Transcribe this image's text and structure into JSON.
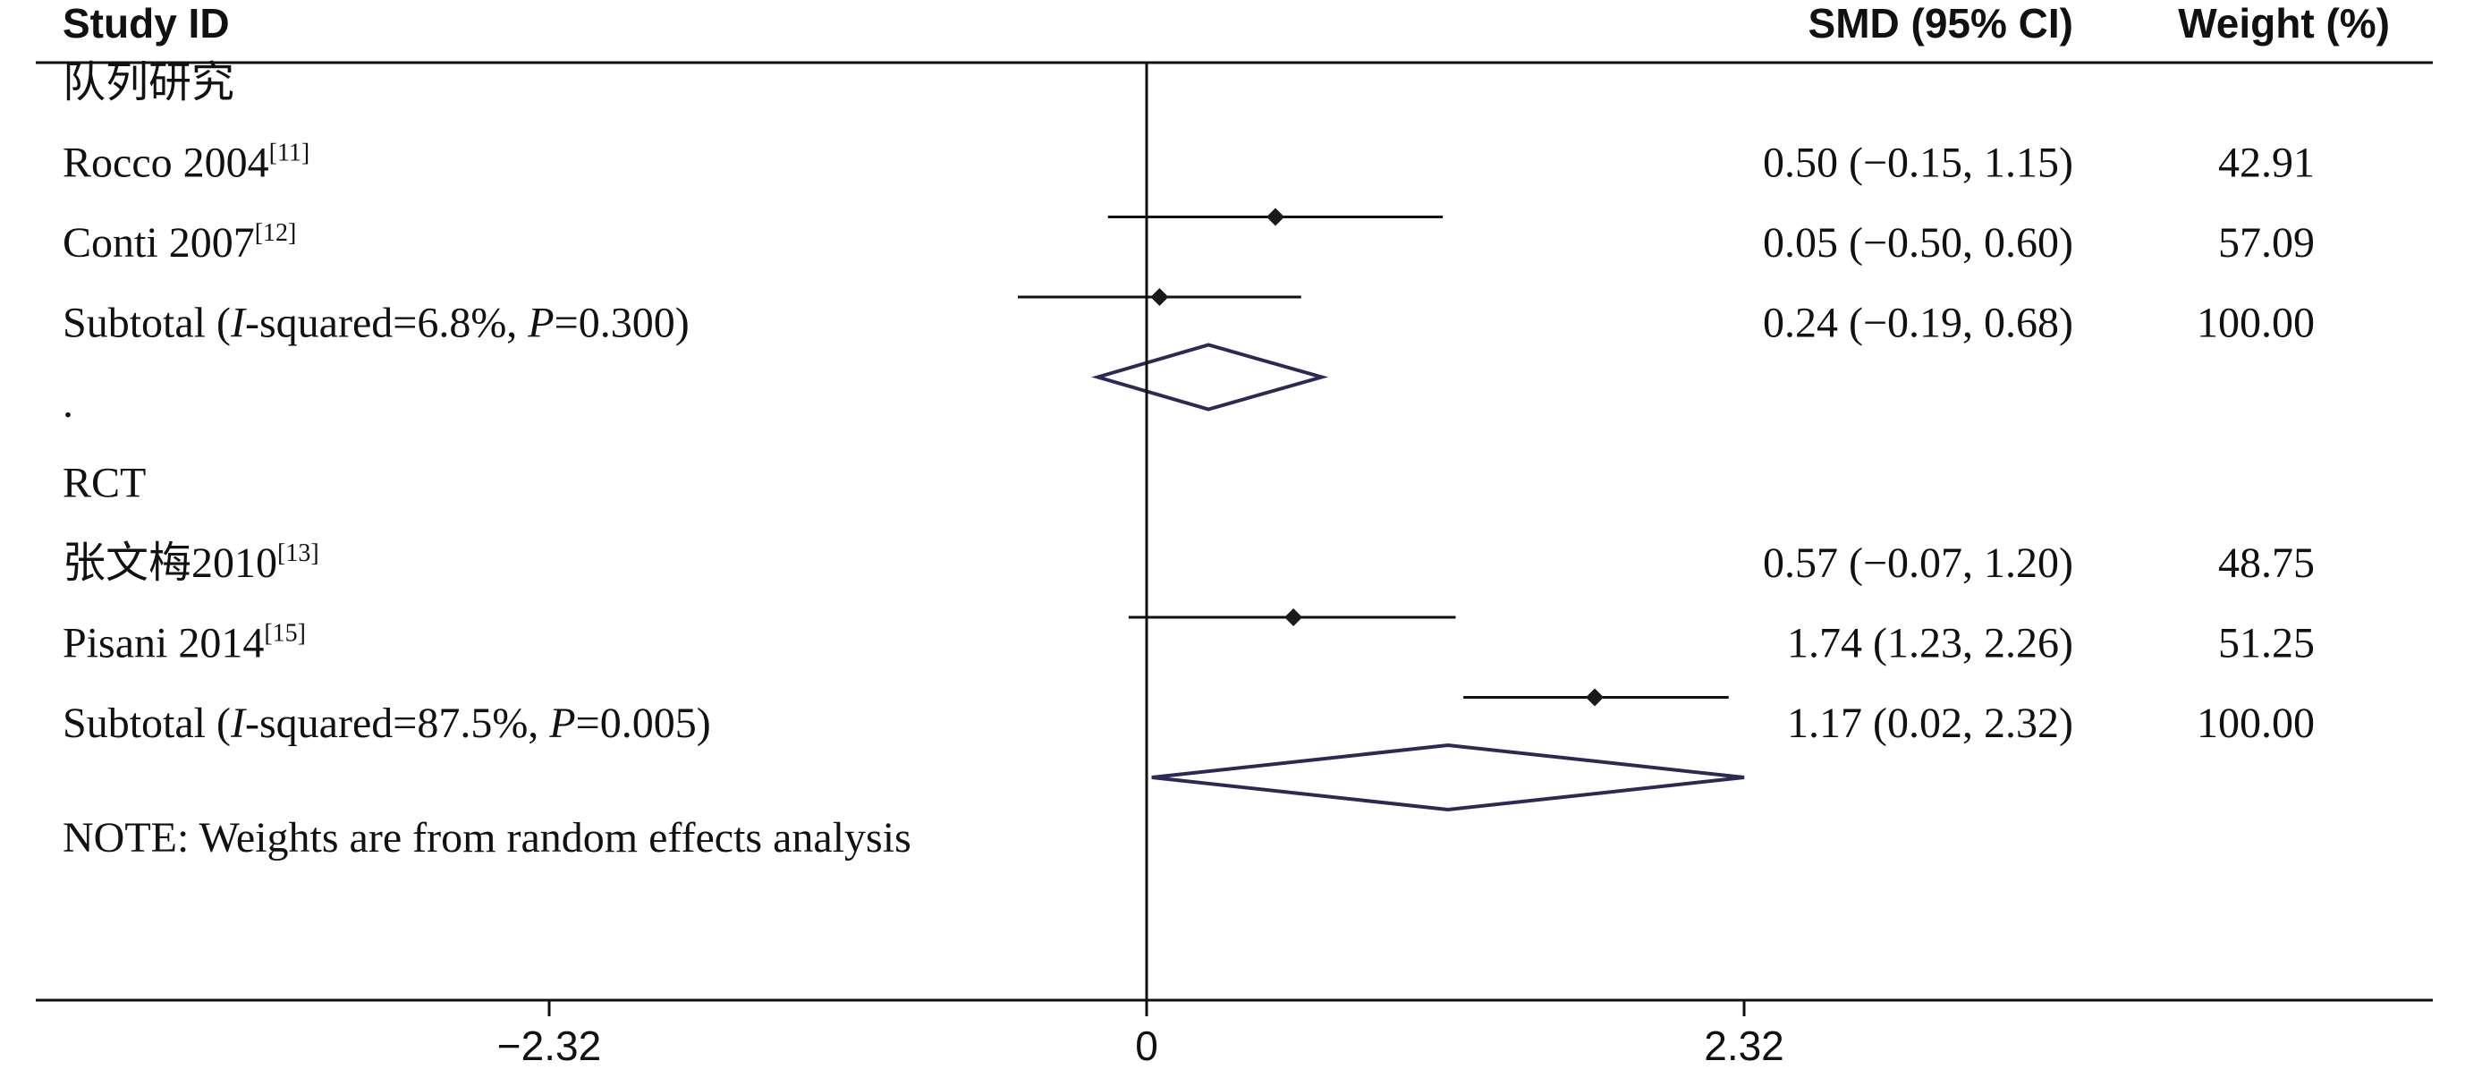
{
  "chart_data": {
    "type": "forest",
    "columns": {
      "study": "Study ID",
      "estimate": "SMD (95% CI)",
      "weight": "Weight (%)"
    },
    "xlim": [
      -2.32,
      2.32
    ],
    "ticks": [
      "-2.32",
      "0",
      "2.32"
    ],
    "tick_values": [
      -2.32,
      0,
      2.32
    ],
    "rows": [
      {
        "kind": "group",
        "label": "队列研究"
      },
      {
        "kind": "study",
        "label": "Rocco 2004",
        "ref": "[11]",
        "est": 0.5,
        "lo": -0.15,
        "hi": 1.15,
        "ci_text": "0.50 (−0.15, 1.15)",
        "weight": "42.91"
      },
      {
        "kind": "study",
        "label": "Conti 2007",
        "ref": "[12]",
        "est": 0.05,
        "lo": -0.5,
        "hi": 0.6,
        "ci_text": "0.05 (−0.50, 0.60)",
        "weight": "57.09"
      },
      {
        "kind": "subtotal",
        "label": "Subtotal",
        "i2_name": "I",
        "i2_rest": "-squared=6.8%, ",
        "p_name": "P",
        "p_rest": "=0.300)",
        "est": 0.24,
        "lo": -0.19,
        "hi": 0.68,
        "ci_text": "0.24 (−0.19, 0.68)",
        "weight": "100.00"
      },
      {
        "kind": "spacer",
        "label": "."
      },
      {
        "kind": "group",
        "label": "RCT"
      },
      {
        "kind": "study",
        "label": "张文梅2010",
        "ref": "[13]",
        "est": 0.57,
        "lo": -0.07,
        "hi": 1.2,
        "ci_text": "0.57 (−0.07, 1.20)",
        "weight": "48.75"
      },
      {
        "kind": "study",
        "label": "Pisani 2014",
        "ref": "[15]",
        "est": 1.74,
        "lo": 1.23,
        "hi": 2.26,
        "ci_text": "1.74 (1.23, 2.26)",
        "weight": "51.25"
      },
      {
        "kind": "subtotal",
        "label": "Subtotal",
        "i2_name": "I",
        "i2_rest": "-squared=87.5%, ",
        "p_name": "P",
        "p_rest": "=0.005)",
        "est": 1.17,
        "lo": 0.02,
        "hi": 2.32,
        "ci_text": "1.17 (0.02, 2.32)",
        "weight": "100.00"
      }
    ],
    "note": "NOTE: Weights are from random effects analysis"
  }
}
